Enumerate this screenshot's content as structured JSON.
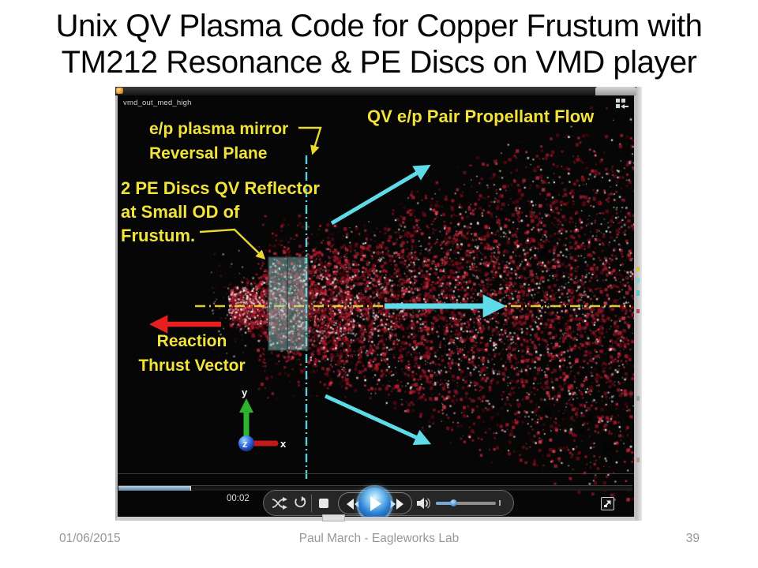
{
  "slide": {
    "title_line1": "Unix QV Plasma Code for Copper Frustum with",
    "title_line2": "TM212 Resonance & PE Discs on VMD player",
    "footer": {
      "date": "01/06/2015",
      "credit": "Paul March - Eagleworks Lab",
      "page": "39"
    }
  },
  "player": {
    "clip_label": "vmd_out_med_high",
    "elapsed_time": "00:02",
    "progress_pct": 14,
    "volume_pct": 29,
    "icons": {
      "titlebar_app": "orange-app-icon",
      "top_right": "tile-layout-icon",
      "shuffle": "shuffle-icon",
      "repeat": "repeat-icon",
      "stop": "stop-icon",
      "rewind": "rewind-icon",
      "play": "play-icon",
      "fast_forward": "fast-forward-icon",
      "volume": "speaker-icon",
      "switch_mode": "switch-to-full-mode-icon"
    }
  },
  "annotations": {
    "flow": "QV e/p Pair Propellant Flow",
    "mirror_line1": "e/p plasma mirror",
    "mirror_line2": "Reversal Plane",
    "discs_line1": "2 PE Discs QV Reflector",
    "discs_line2": "at Small OD of",
    "discs_line3": "Frustum.",
    "thrust_line1": "Reaction",
    "thrust_line2": "Thrust Vector"
  },
  "axes_labels": {
    "x": "x",
    "y": "y",
    "z": "z"
  },
  "colors": {
    "annotation_yellow": "#f2e33c",
    "guide_yellow": "#e8d92e",
    "flow_cyan": "#5fdbe8",
    "thrust_red": "#e81f1f",
    "disc_fill": "#9ad8d4",
    "progress_blue": "#7e9fba",
    "axis_green": "#2db32d",
    "axis_red": "#c41919",
    "axis_blue": "#1e52c8"
  }
}
